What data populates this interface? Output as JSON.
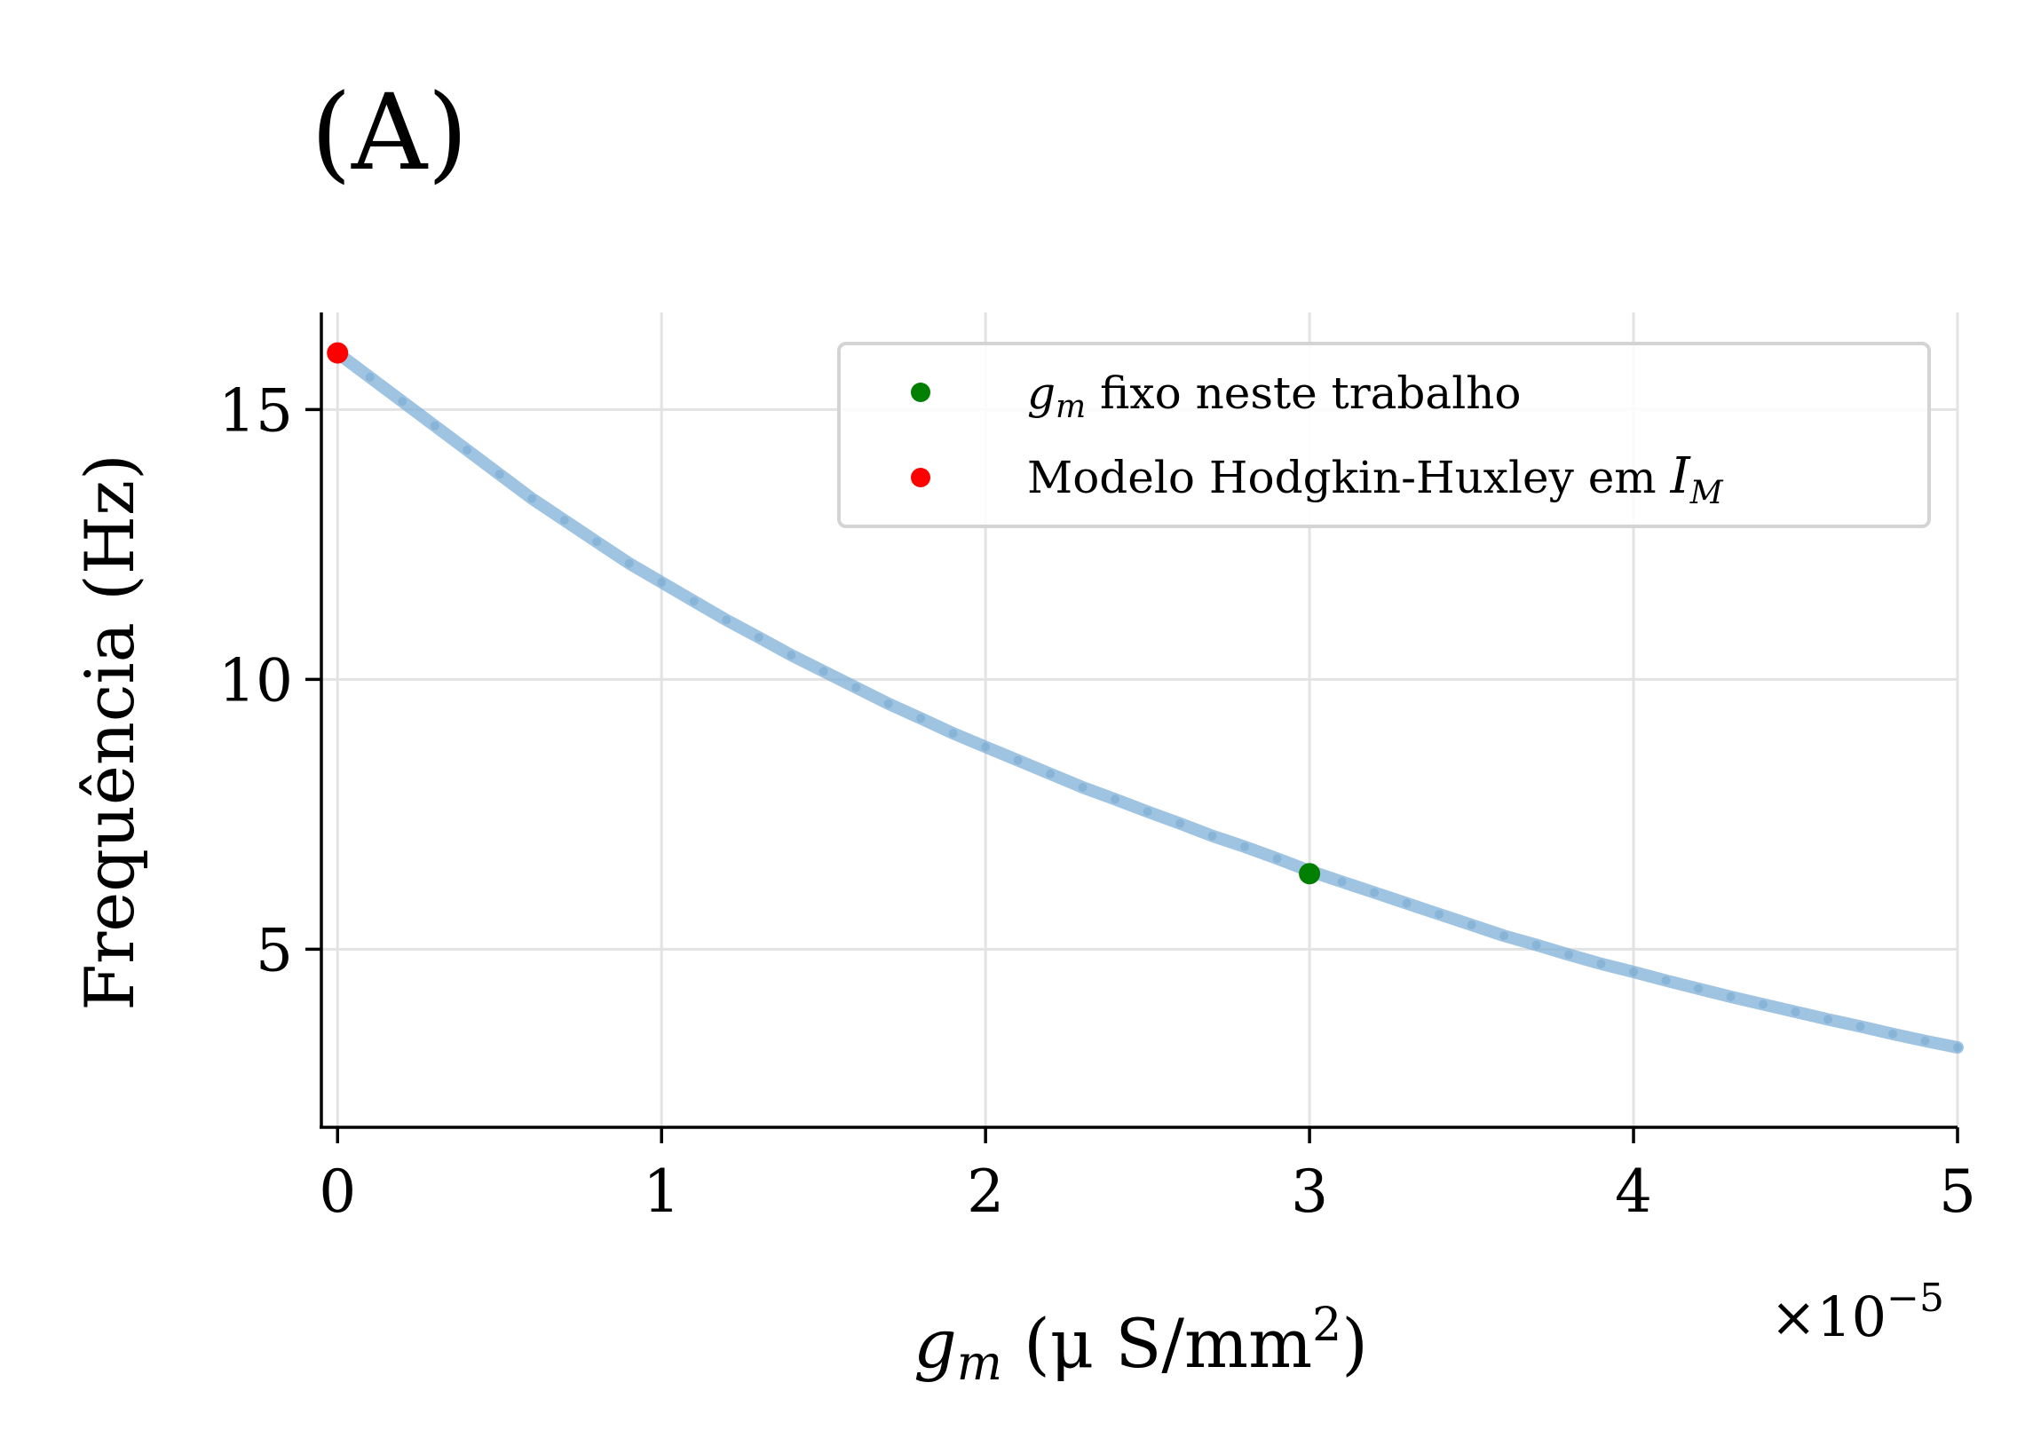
{
  "panel_label": "(A)",
  "chart_data": {
    "type": "scatter",
    "title": "",
    "xlabel": "g_m (μ S/mm²)",
    "xlabel_parts": {
      "var": "g",
      "sub": "m",
      "rest": " (μ S/mm",
      "sup": "2",
      "close": ")"
    },
    "ylabel": "Frequência (Hz)",
    "x_offset_text": {
      "base": "×10",
      "exponent": "−5"
    },
    "x_scale_factor": 1e-05,
    "xlim": [
      -0.05,
      5
    ],
    "ylim": [
      1.7,
      16.8
    ],
    "xticks": [
      0,
      1,
      2,
      3,
      4,
      5
    ],
    "xtick_labels": [
      "0",
      "1",
      "2",
      "3",
      "4",
      "5"
    ],
    "yticks": [
      5,
      10,
      15
    ],
    "ytick_labels": [
      "5",
      "10",
      "15"
    ],
    "grid": true,
    "legend_position": "top-right",
    "series": [
      {
        "kind": "curve",
        "color": "#7fb0d8",
        "x": [
          0,
          0.1,
          0.2,
          0.3,
          0.4,
          0.5,
          0.6,
          0.7,
          0.8,
          0.9,
          1.0,
          1.1,
          1.2,
          1.3,
          1.4,
          1.5,
          1.6,
          1.7,
          1.8,
          1.9,
          2.0,
          2.1,
          2.2,
          2.3,
          2.4,
          2.5,
          2.6,
          2.7,
          2.8,
          2.9,
          3.0,
          3.1,
          3.2,
          3.3,
          3.4,
          3.5,
          3.6,
          3.7,
          3.8,
          3.9,
          4.0,
          4.1,
          4.2,
          4.3,
          4.4,
          4.5,
          4.6,
          4.7,
          4.8,
          4.9,
          5.0
        ],
        "y": [
          16.05,
          15.6,
          15.15,
          14.7,
          14.25,
          13.8,
          13.35,
          12.95,
          12.55,
          12.15,
          11.8,
          11.45,
          11.1,
          10.78,
          10.45,
          10.15,
          9.85,
          9.55,
          9.28,
          9.0,
          8.75,
          8.5,
          8.25,
          8.0,
          7.78,
          7.55,
          7.33,
          7.1,
          6.9,
          6.68,
          6.45,
          6.25,
          6.05,
          5.85,
          5.65,
          5.45,
          5.25,
          5.08,
          4.9,
          4.73,
          4.58,
          4.42,
          4.27,
          4.12,
          3.98,
          3.84,
          3.7,
          3.57,
          3.43,
          3.3,
          3.18
        ]
      },
      {
        "kind": "points",
        "name_parts": {
          "var": "g",
          "sub": "m",
          "rest": " fixo neste trabalho"
        },
        "color": "#007f00",
        "x": [
          3.0
        ],
        "y": [
          6.4
        ]
      },
      {
        "kind": "points",
        "name_parts": {
          "rest": "Modelo Hodgkin-Huxley em ",
          "var": "I",
          "sub": "M"
        },
        "color": "#ff0000",
        "x": [
          0.0
        ],
        "y": [
          16.05
        ]
      }
    ]
  }
}
